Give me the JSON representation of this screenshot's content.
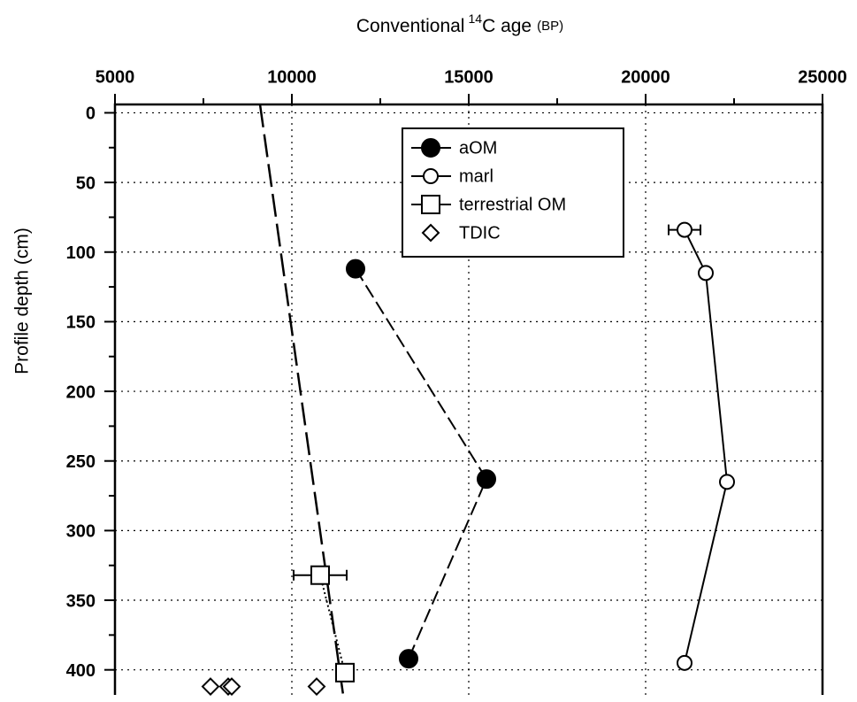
{
  "chart_data": {
    "type": "scatter",
    "x_label": {
      "text": "Conventional",
      "superscript": "14",
      "text_after": "C age",
      "unit": "(BP)"
    },
    "y_label": "Profile depth (cm)",
    "xlim": [
      5000,
      25000
    ],
    "xticks": [
      5000,
      10000,
      15000,
      20000,
      25000
    ],
    "x_minor_ticks": [
      7500,
      12500,
      17500,
      22500
    ],
    "ylim": [
      -6,
      418
    ],
    "yticks": [
      0,
      50,
      100,
      150,
      200,
      250,
      300,
      350,
      400
    ],
    "y_minor_ticks": [
      25,
      75,
      125,
      175,
      225,
      275,
      325,
      375
    ],
    "grid": true,
    "legend": "top-center",
    "x_axis_position": "top",
    "y_inverted": true,
    "series": [
      {
        "name": "aOM",
        "color": "#000000",
        "marker": "filled-circle",
        "line": "dashed",
        "x": [
          11800,
          15500,
          13300
        ],
        "y": [
          112,
          263,
          392
        ]
      },
      {
        "name": "marl",
        "color": "#000000",
        "marker": "open-circle",
        "line": "solid",
        "x": [
          21100,
          21700,
          22300,
          21100
        ],
        "y": [
          84,
          115,
          265,
          395
        ],
        "x_errors": [
          450,
          null,
          null,
          null
        ]
      },
      {
        "name": "terrestrial OM",
        "color": "#000000",
        "marker": "open-square",
        "line": "dotted",
        "x": [
          10800,
          11500
        ],
        "y": [
          332,
          402
        ],
        "x_errors": [
          750,
          null
        ]
      },
      {
        "name": "TDIC",
        "color": "#000000",
        "marker": "open-diamond",
        "line": "none",
        "x": [
          7700,
          8200,
          8300,
          10700
        ],
        "y": [
          412,
          412,
          412,
          412
        ]
      }
    ],
    "trend_line": {
      "color": "#000000",
      "line": "long-dashed",
      "x": [
        9100,
        11450
      ],
      "y": [
        -6,
        418
      ]
    }
  }
}
